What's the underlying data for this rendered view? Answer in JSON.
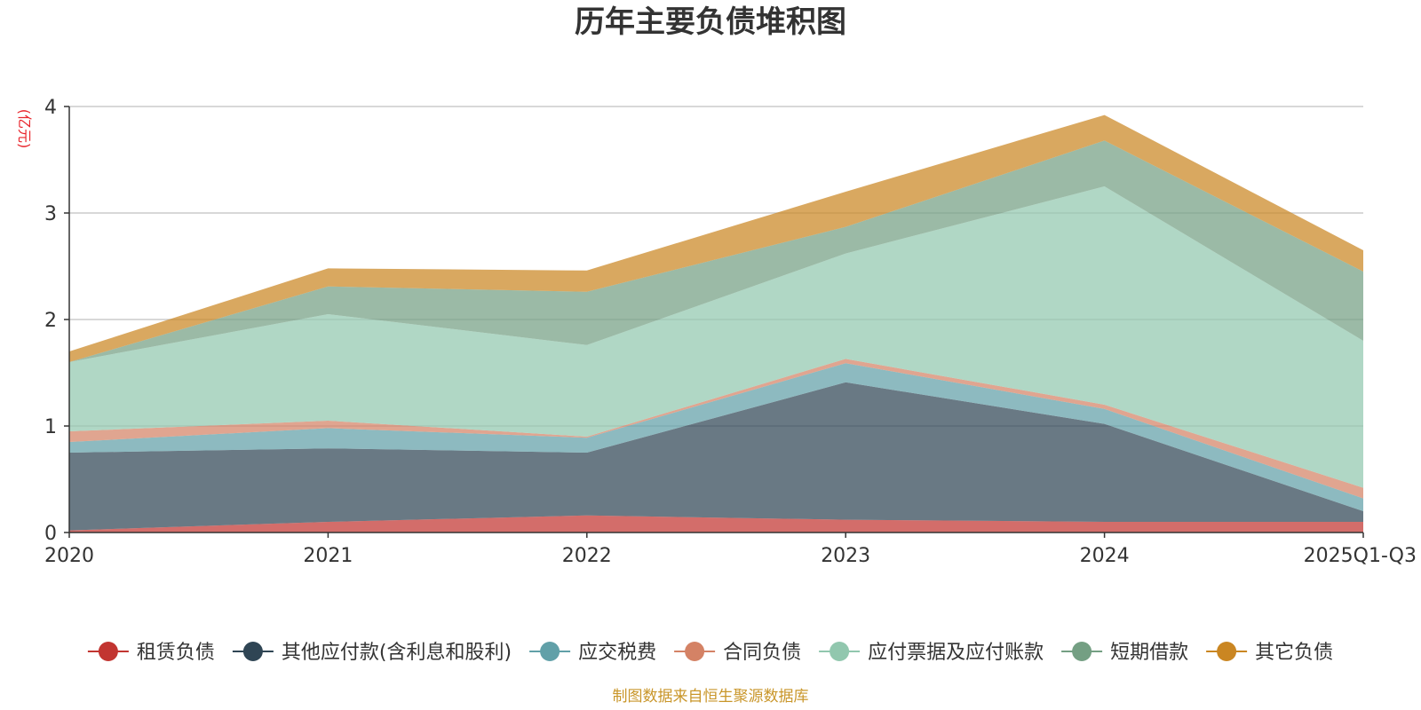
{
  "chart_data": {
    "type": "area",
    "stacked": true,
    "title": "历年主要负债堆积图",
    "ylabel": "(亿元)",
    "x": [
      "2020",
      "2021",
      "2022",
      "2023",
      "2024",
      "2025Q1-Q3"
    ],
    "ylim": [
      0,
      4
    ],
    "yticks": [
      "0",
      "1",
      "2",
      "3",
      "4"
    ],
    "grid": true,
    "legend_position": "bottom",
    "series": [
      {
        "name": "租赁负债",
        "color": "#c23531",
        "values": [
          0.02,
          0.1,
          0.16,
          0.12,
          0.1,
          0.1
        ]
      },
      {
        "name": "其他应付款(含利息和股利)",
        "color": "#2f4554",
        "values": [
          0.73,
          0.69,
          0.59,
          1.29,
          0.92,
          0.1
        ]
      },
      {
        "name": "应交税费",
        "color": "#61a0a8",
        "values": [
          0.1,
          0.19,
          0.14,
          0.18,
          0.14,
          0.12
        ]
      },
      {
        "name": "合同负债",
        "color": "#d48265",
        "values": [
          0.1,
          0.07,
          0.01,
          0.04,
          0.04,
          0.1
        ]
      },
      {
        "name": "应付票据及应付账款",
        "color": "#91c7ae",
        "values": [
          0.65,
          1.0,
          0.86,
          0.99,
          2.05,
          1.38
        ]
      },
      {
        "name": "短期借款",
        "color": "#749f83",
        "values": [
          0.0,
          0.26,
          0.5,
          0.25,
          0.43,
          0.65
        ]
      },
      {
        "name": "其它负债",
        "color": "#ca8622",
        "values": [
          0.1,
          0.17,
          0.2,
          0.33,
          0.24,
          0.2
        ]
      }
    ]
  },
  "footer": {
    "source": "制图数据来自恒生聚源数据库"
  }
}
